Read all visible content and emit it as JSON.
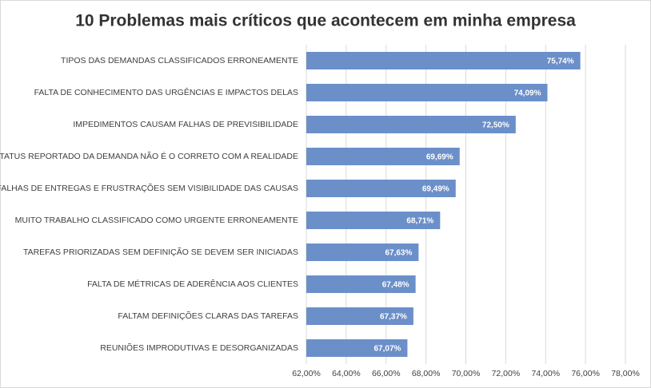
{
  "chart_data": {
    "type": "bar",
    "orientation": "horizontal",
    "title": "10 Problemas mais críticos que acontecem em minha empresa",
    "categories": [
      "TIPOS DAS DEMANDAS CLASSIFICADOS ERRONEAMENTE",
      "FALTA DE CONHECIMENTO DAS URGÊNCIAS E IMPACTOS DELAS",
      "IMPEDIMENTOS CAUSAM FALHAS DE PREVISIBILIDADE",
      "STATUS REPORTADO DA DEMANDA NÃO É O CORRETO COM A REALIDADE",
      "FALHAS DE ENTREGAS E FRUSTRAÇÕES SEM VISIBILIDADE DAS CAUSAS",
      "MUITO TRABALHO CLASSIFICADO COMO URGENTE ERRONEAMENTE",
      "TAREFAS PRIORIZADAS SEM DEFINIÇÃO SE DEVEM SER INICIADAS",
      "FALTA DE MÉTRICAS DE ADERÊNCIA AOS CLIENTES",
      "FALTAM DEFINIÇÕES CLARAS DAS TAREFAS",
      "REUNIÕES IMPRODUTIVAS E DESORGANIZADAS"
    ],
    "values": [
      75.74,
      74.09,
      72.5,
      69.69,
      69.49,
      68.71,
      67.63,
      67.48,
      67.37,
      67.07
    ],
    "value_labels": [
      "75,74%",
      "74,09%",
      "72,50%",
      "69,69%",
      "69,49%",
      "68,71%",
      "67,63%",
      "67,48%",
      "67,37%",
      "67,07%"
    ],
    "color": "#6b8fc9",
    "xlim": [
      62,
      78
    ],
    "xticks": [
      {
        "value": 62,
        "label": "62,00%"
      },
      {
        "value": 64,
        "label": "64,00%"
      },
      {
        "value": 66,
        "label": "66,00%"
      },
      {
        "value": 68,
        "label": "68,00%"
      },
      {
        "value": 70,
        "label": "70,00%"
      },
      {
        "value": 72,
        "label": "72,00%"
      },
      {
        "value": 74,
        "label": "74,00%"
      },
      {
        "value": 76,
        "label": "76,00%"
      },
      {
        "value": 78,
        "label": "78,00%"
      }
    ],
    "grid": true
  }
}
